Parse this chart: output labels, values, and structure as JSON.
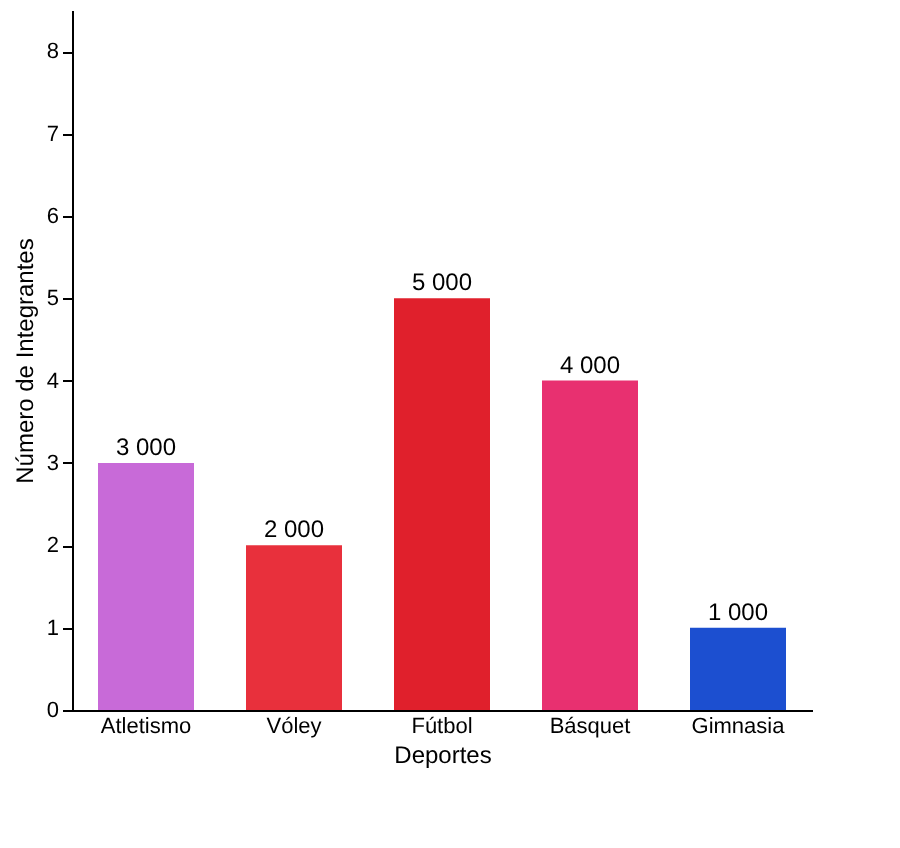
{
  "chart_data": {
    "type": "bar",
    "xlabel": "Deportes",
    "ylabel": "Número de Integrantes",
    "categories": [
      "Atletismo",
      "Vóley",
      "Fútbol",
      "Básquet",
      "Gimnasia"
    ],
    "values": [
      3,
      2,
      5,
      4,
      1
    ],
    "colors": [
      "#c86ad8",
      "#e8303c",
      "#e0202c",
      "#e83070",
      "#1c4fd0"
    ],
    "annotations": [
      {
        "text": "3 000",
        "x": "Atletismo",
        "y": 3
      },
      {
        "text": "2 000",
        "x": "Vóley",
        "y": 2
      },
      {
        "text": "5 000",
        "x": "Fútbol",
        "y": 5
      },
      {
        "text": "4 000",
        "x": "Básquet",
        "y": 4
      },
      {
        "text": "1 000",
        "x": "Gimnasia",
        "y": 1
      }
    ],
    "ylim": [
      0,
      8.5
    ],
    "yticks": [
      0,
      1,
      2,
      3,
      4,
      5,
      6,
      7,
      8
    ],
    "grid": false
  }
}
